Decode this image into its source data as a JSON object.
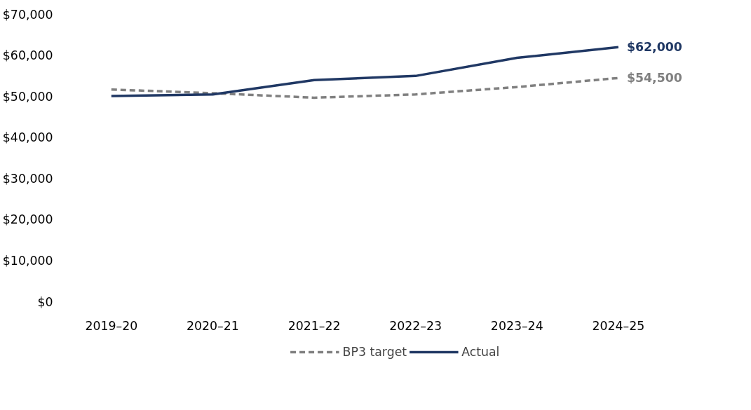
{
  "chart_data": {
    "type": "line",
    "categories": [
      "2019–20",
      "2020–21",
      "2021–22",
      "2022–23",
      "2023–24",
      "2024–25"
    ],
    "ylim": [
      0,
      70000
    ],
    "yticks": [
      {
        "value": 0,
        "label": "$0"
      },
      {
        "value": 10000,
        "label": "$10,000"
      },
      {
        "value": 20000,
        "label": "$20,000"
      },
      {
        "value": 30000,
        "label": "$30,000"
      },
      {
        "value": 40000,
        "label": "$40,000"
      },
      {
        "value": 50000,
        "label": "$50,000"
      },
      {
        "value": 60000,
        "label": "$60,000"
      },
      {
        "value": 70000,
        "label": "$70,000"
      }
    ],
    "grid": false,
    "legend": "bottom",
    "series": [
      {
        "name": "BP3 target",
        "color": "#808080",
        "line_style": "dashed",
        "values": [
          51700,
          50800,
          49700,
          50500,
          52300,
          54500
        ],
        "value_labels": [
          null,
          null,
          null,
          null,
          null,
          "$54,500"
        ]
      },
      {
        "name": "Actual",
        "color": "#203864",
        "line_style": "solid",
        "values": [
          50100,
          50500,
          54000,
          55000,
          59400,
          62000
        ],
        "value_labels": [
          null,
          null,
          null,
          null,
          null,
          "$62,000"
        ]
      }
    ]
  }
}
